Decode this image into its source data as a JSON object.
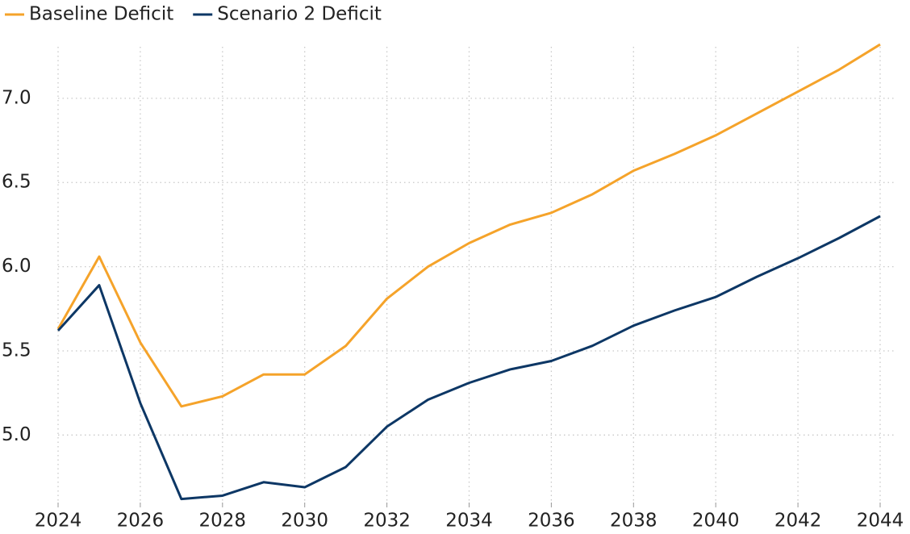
{
  "chart_data": {
    "type": "line",
    "x": [
      2024,
      2025,
      2026,
      2027,
      2028,
      2029,
      2030,
      2031,
      2032,
      2033,
      2034,
      2035,
      2036,
      2037,
      2038,
      2039,
      2040,
      2041,
      2042,
      2043,
      2044
    ],
    "series": [
      {
        "name": "Baseline Deficit",
        "color": "#f5a32a",
        "values": [
          5.63,
          6.06,
          5.55,
          5.17,
          5.23,
          5.36,
          5.36,
          5.53,
          5.81,
          6.0,
          6.14,
          6.25,
          6.32,
          6.43,
          6.57,
          6.67,
          6.78,
          6.91,
          7.04,
          7.17,
          7.32
        ]
      },
      {
        "name": "Scenario 2 Deficit",
        "color": "#0d3765",
        "values": [
          5.62,
          5.89,
          5.19,
          4.62,
          4.64,
          4.72,
          4.69,
          4.81,
          5.05,
          5.21,
          5.31,
          5.39,
          5.44,
          5.53,
          5.65,
          5.74,
          5.82,
          5.94,
          6.05,
          6.17,
          6.3
        ]
      }
    ],
    "xlim": [
      2024,
      2044
    ],
    "xticks": [
      2024,
      2026,
      2028,
      2030,
      2032,
      2034,
      2036,
      2038,
      2040,
      2042,
      2044
    ],
    "ylim": [
      4.58,
      7.33
    ],
    "yticks": [
      {
        "value": 5,
        "label": "5.0"
      },
      {
        "value": 5.5,
        "label": "5.5"
      },
      {
        "value": 6,
        "label": "6.0"
      },
      {
        "value": 6.5,
        "label": "6.5"
      },
      {
        "value": 7,
        "label": "7.0"
      }
    ],
    "grid": true,
    "legend": "top-left"
  }
}
